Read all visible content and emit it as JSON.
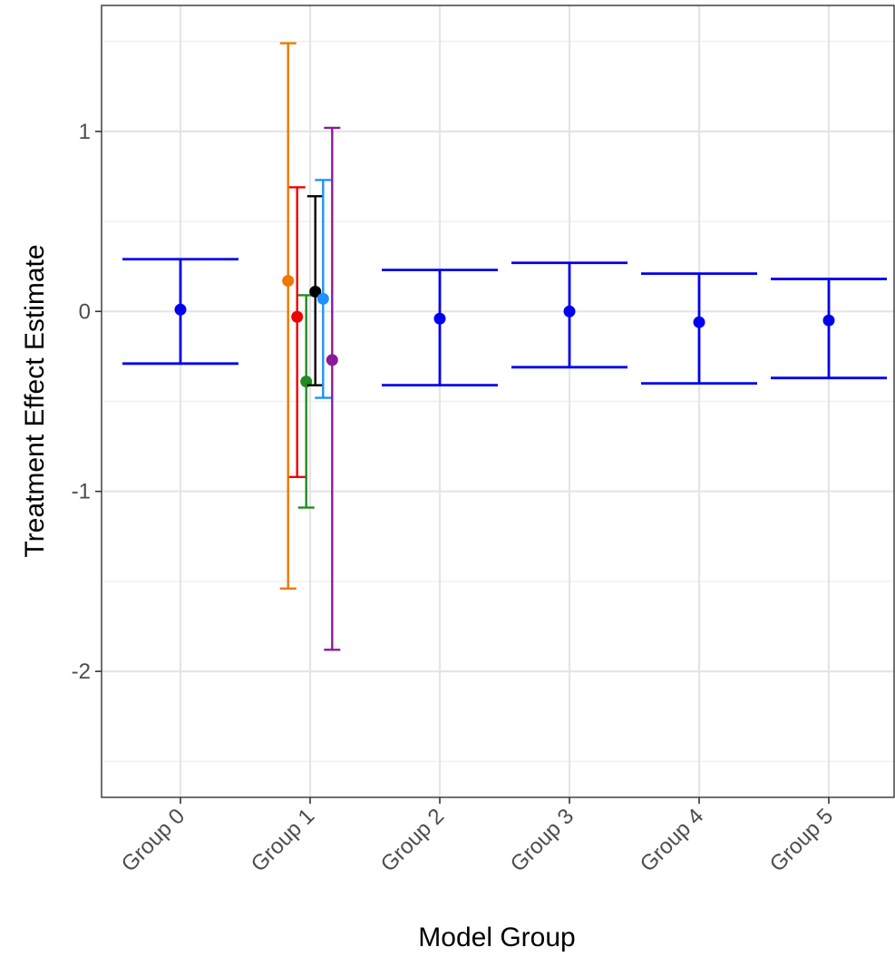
{
  "chart_data": {
    "type": "errorbar",
    "title": "",
    "xlabel": "Model Group",
    "ylabel": "Treatment Effect Estimate",
    "categories": [
      "Group 0",
      "Group 1",
      "Group 2",
      "Group 3",
      "Group 4",
      "Group 5"
    ],
    "ylim": [
      -2.7,
      1.7
    ],
    "yticks": [
      -2,
      -1,
      0,
      1
    ],
    "grid": true,
    "legend": "none",
    "points": [
      {
        "category": "Group 0",
        "offset": 0.0,
        "estimate": 0.01,
        "lower": -0.29,
        "upper": 0.29,
        "color": "#0000ee",
        "cap": "wide"
      },
      {
        "category": "Group 1",
        "offset": -0.17,
        "estimate": 0.17,
        "lower": -1.54,
        "upper": 1.49,
        "color": "#ee7700",
        "cap": "narrow"
      },
      {
        "category": "Group 1",
        "offset": -0.1,
        "estimate": -0.03,
        "lower": -0.92,
        "upper": 0.69,
        "color": "#ee0000",
        "cap": "narrow"
      },
      {
        "category": "Group 1",
        "offset": -0.03,
        "estimate": -0.39,
        "lower": -1.09,
        "upper": 0.09,
        "color": "#228b22",
        "cap": "narrow"
      },
      {
        "category": "Group 1",
        "offset": 0.04,
        "estimate": 0.11,
        "lower": -0.41,
        "upper": 0.64,
        "color": "#000000",
        "cap": "narrow"
      },
      {
        "category": "Group 1",
        "offset": 0.1,
        "estimate": 0.07,
        "lower": -0.48,
        "upper": 0.73,
        "color": "#1e90ff",
        "cap": "narrow"
      },
      {
        "category": "Group 1",
        "offset": 0.17,
        "estimate": -0.27,
        "lower": -1.88,
        "upper": 1.02,
        "color": "#8b1a9b",
        "cap": "narrow"
      },
      {
        "category": "Group 2",
        "offset": 0.0,
        "estimate": -0.04,
        "lower": -0.41,
        "upper": 0.23,
        "color": "#0000ee",
        "cap": "wide"
      },
      {
        "category": "Group 3",
        "offset": 0.0,
        "estimate": 0.0,
        "lower": -0.31,
        "upper": 0.27,
        "color": "#0000ee",
        "cap": "wide"
      },
      {
        "category": "Group 4",
        "offset": 0.0,
        "estimate": -0.06,
        "lower": -0.4,
        "upper": 0.21,
        "color": "#0000ee",
        "cap": "wide"
      },
      {
        "category": "Group 5",
        "offset": 0.0,
        "estimate": -0.05,
        "lower": -0.37,
        "upper": 0.18,
        "color": "#0000ee",
        "cap": "wide"
      }
    ]
  }
}
